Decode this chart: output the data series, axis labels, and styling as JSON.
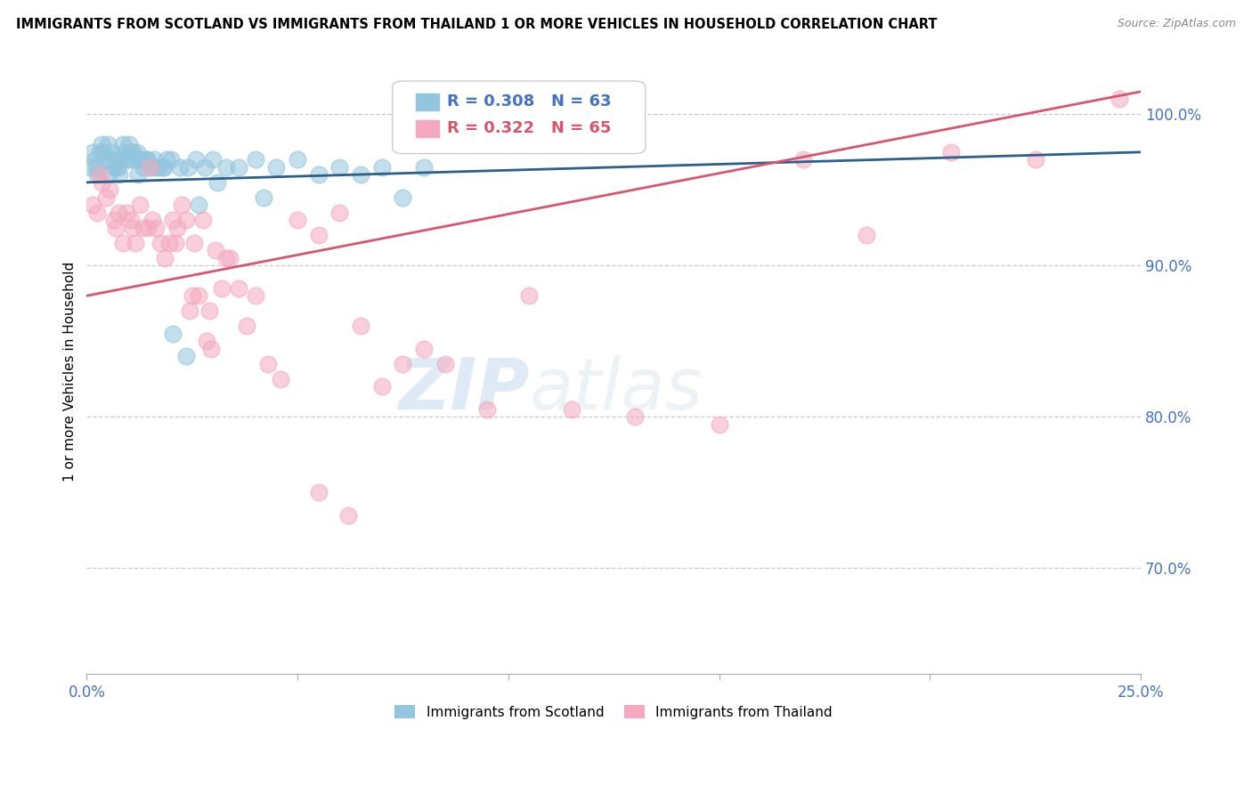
{
  "title": "IMMIGRANTS FROM SCOTLAND VS IMMIGRANTS FROM THAILAND 1 OR MORE VEHICLES IN HOUSEHOLD CORRELATION CHART",
  "source": "Source: ZipAtlas.com",
  "ylabel": "1 or more Vehicles in Household",
  "xmin": 0.0,
  "xmax": 25.0,
  "ymin": 63.0,
  "ymax": 103.0,
  "scotland_R": 0.308,
  "scotland_N": 63,
  "thailand_R": 0.322,
  "thailand_N": 65,
  "scotland_color": "#92c5de",
  "thailand_color": "#f4a9be",
  "scotland_line_color": "#2c5f8a",
  "thailand_line_color": "#d9556d",
  "legend_scotland": "Immigrants from Scotland",
  "legend_thailand": "Immigrants from Thailand",
  "watermark_zip": "ZIP",
  "watermark_atlas": "atlas",
  "scotland_x": [
    0.1,
    0.15,
    0.2,
    0.25,
    0.3,
    0.35,
    0.4,
    0.45,
    0.5,
    0.55,
    0.6,
    0.65,
    0.7,
    0.75,
    0.8,
    0.85,
    0.9,
    0.95,
    1.0,
    1.05,
    1.1,
    1.15,
    1.2,
    1.25,
    1.3,
    1.35,
    1.4,
    1.5,
    1.6,
    1.7,
    1.8,
    1.9,
    2.0,
    2.2,
    2.4,
    2.6,
    2.8,
    3.0,
    3.3,
    3.6,
    4.0,
    4.5,
    5.0,
    5.5,
    6.0,
    6.5,
    7.0,
    8.0,
    0.22,
    0.52,
    0.68,
    0.78,
    1.02,
    1.22,
    1.42,
    1.62,
    1.82,
    2.05,
    2.35,
    2.65,
    3.1,
    4.2,
    7.5
  ],
  "scotland_y": [
    96.5,
    97.5,
    97.0,
    96.0,
    97.5,
    98.0,
    97.5,
    97.0,
    98.0,
    97.0,
    97.5,
    96.5,
    97.0,
    96.5,
    97.0,
    98.0,
    97.5,
    97.0,
    98.0,
    97.5,
    97.5,
    97.0,
    97.5,
    97.0,
    97.0,
    96.5,
    97.0,
    96.5,
    97.0,
    96.5,
    96.5,
    97.0,
    97.0,
    96.5,
    96.5,
    97.0,
    96.5,
    97.0,
    96.5,
    96.5,
    97.0,
    96.5,
    97.0,
    96.0,
    96.5,
    96.0,
    96.5,
    96.5,
    96.5,
    96.0,
    96.5,
    96.0,
    97.0,
    96.0,
    97.0,
    96.5,
    96.5,
    85.5,
    84.0,
    94.0,
    95.5,
    94.5,
    94.5
  ],
  "thailand_x": [
    0.15,
    0.25,
    0.35,
    0.45,
    0.55,
    0.65,
    0.75,
    0.85,
    0.95,
    1.05,
    1.15,
    1.25,
    1.35,
    1.45,
    1.55,
    1.65,
    1.75,
    1.85,
    1.95,
    2.05,
    2.15,
    2.25,
    2.35,
    2.45,
    2.55,
    2.65,
    2.75,
    2.85,
    2.95,
    3.05,
    3.2,
    3.4,
    3.6,
    3.8,
    4.0,
    4.3,
    4.6,
    5.0,
    5.5,
    6.0,
    6.5,
    7.0,
    7.5,
    8.0,
    8.5,
    9.5,
    10.5,
    11.5,
    13.0,
    15.0,
    17.0,
    18.5,
    20.5,
    22.5,
    24.5,
    0.3,
    0.7,
    1.1,
    1.5,
    2.1,
    2.5,
    2.9,
    3.3,
    6.2,
    5.5
  ],
  "thailand_y": [
    94.0,
    93.5,
    95.5,
    94.5,
    95.0,
    93.0,
    93.5,
    91.5,
    93.5,
    93.0,
    91.5,
    94.0,
    92.5,
    92.5,
    93.0,
    92.5,
    91.5,
    90.5,
    91.5,
    93.0,
    92.5,
    94.0,
    93.0,
    87.0,
    91.5,
    88.0,
    93.0,
    85.0,
    84.5,
    91.0,
    88.5,
    90.5,
    88.5,
    86.0,
    88.0,
    83.5,
    82.5,
    93.0,
    92.0,
    93.5,
    86.0,
    82.0,
    83.5,
    84.5,
    83.5,
    80.5,
    88.0,
    80.5,
    80.0,
    79.5,
    97.0,
    92.0,
    97.5,
    97.0,
    101.0,
    96.0,
    92.5,
    92.5,
    96.5,
    91.5,
    88.0,
    87.0,
    90.5,
    73.5,
    75.0
  ],
  "scotland_trendline_x0": 0.0,
  "scotland_trendline_x1": 25.0,
  "scotland_trendline_y0": 95.5,
  "scotland_trendline_y1": 97.5,
  "thailand_trendline_x0": 0.0,
  "thailand_trendline_x1": 25.0,
  "thailand_trendline_y0": 88.0,
  "thailand_trendline_y1": 101.5
}
